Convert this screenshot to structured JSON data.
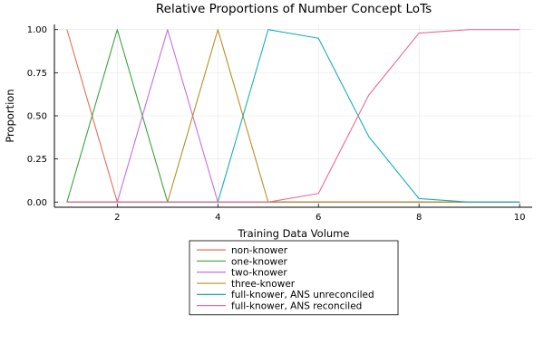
{
  "chart_data": {
    "type": "line",
    "title": "Relative Proportions of Number Concept LoTs",
    "xlabel": "Training Data Volume",
    "ylabel": "Proportion",
    "xlim": [
      0.75,
      10.25
    ],
    "ylim": [
      -0.03,
      1.03
    ],
    "xticks": [
      2,
      4,
      6,
      8,
      10
    ],
    "yticks": [
      0.0,
      0.25,
      0.5,
      0.75,
      1.0
    ],
    "ytick_labels": [
      "0.00",
      "0.25",
      "0.50",
      "0.75",
      "1.00"
    ],
    "grid": true,
    "legend_position": "bottom-center",
    "x": [
      1,
      2,
      3,
      4,
      5,
      6,
      7,
      8,
      9,
      10
    ],
    "series": [
      {
        "name": "non-knower",
        "color": "#E26F5C",
        "values": [
          1.0,
          0,
          0,
          0,
          0,
          0,
          0,
          0,
          0,
          0
        ]
      },
      {
        "name": "one-knower",
        "color": "#3DA23D",
        "values": [
          0,
          1.0,
          0,
          0,
          0,
          0,
          0,
          0,
          0,
          0
        ]
      },
      {
        "name": "two-knower",
        "color": "#C76EDC",
        "values": [
          0,
          0,
          1.0,
          0,
          0,
          0,
          0,
          0,
          0,
          0
        ]
      },
      {
        "name": "three-knower",
        "color": "#B8901F",
        "values": [
          0,
          0,
          0,
          1.0,
          0,
          0,
          0,
          0,
          0,
          0
        ]
      },
      {
        "name": "full-knower, ANS unreconciled",
        "color": "#1AAFB5",
        "values": [
          0,
          0,
          0,
          0,
          1.0,
          0.95,
          0.38,
          0.02,
          0.0,
          0.0
        ]
      },
      {
        "name": "full-knower, ANS reconciled",
        "color": "#EE6A91",
        "values": [
          0,
          0,
          0,
          0,
          0.0,
          0.05,
          0.62,
          0.98,
          1.0,
          1.0
        ]
      }
    ]
  }
}
